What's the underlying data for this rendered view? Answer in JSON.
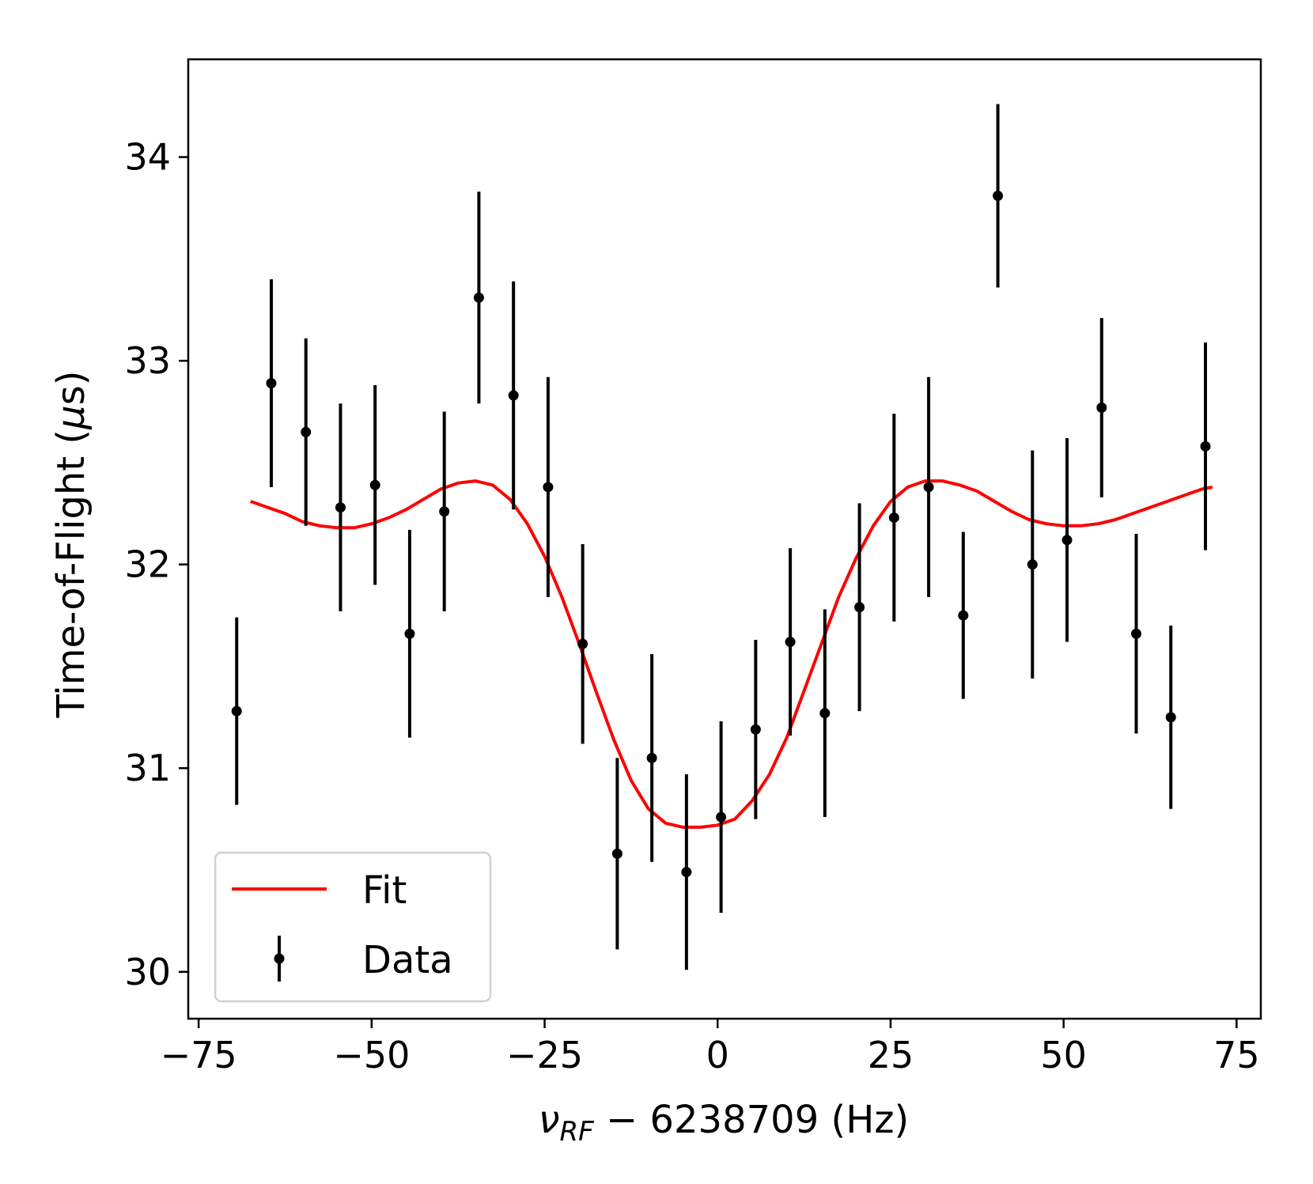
{
  "chart_data": {
    "type": "scatter",
    "xlabel_parts": {
      "nu": "ν",
      "sub": "RF",
      "rest": " − 6238709 (Hz)"
    },
    "ylabel": "Time-of-Flight (μs)",
    "ylabel_parts": {
      "prefix": "Time-of-Flight (",
      "mu": "μ",
      "suffix": "s)"
    },
    "xlim": [
      -76.5,
      78.5
    ],
    "ylim": [
      29.77,
      34.48
    ],
    "xticks": [
      -75,
      -50,
      -25,
      0,
      25,
      50,
      75
    ],
    "xtick_labels": [
      "−75",
      "−50",
      "−25",
      "0",
      "25",
      "50",
      "75"
    ],
    "yticks": [
      30,
      31,
      32,
      33,
      34
    ],
    "ytick_labels": [
      "30",
      "31",
      "32",
      "33",
      "34"
    ],
    "grid": false,
    "legend_position": "lower-left",
    "legend": [
      {
        "label": "Fit",
        "kind": "line",
        "color": "#ff0000"
      },
      {
        "label": "Data",
        "kind": "errorbar",
        "color": "#000000"
      }
    ],
    "series": [
      {
        "name": "Data",
        "kind": "errorbar",
        "color": "#000000",
        "points": [
          {
            "x": -69.5,
            "y": 31.28,
            "err": 0.46
          },
          {
            "x": -64.5,
            "y": 32.89,
            "err": 0.51
          },
          {
            "x": -59.5,
            "y": 32.65,
            "err": 0.46
          },
          {
            "x": -54.5,
            "y": 32.28,
            "err": 0.51
          },
          {
            "x": -49.5,
            "y": 32.39,
            "err": 0.49
          },
          {
            "x": -44.5,
            "y": 31.66,
            "err": 0.51
          },
          {
            "x": -39.5,
            "y": 32.26,
            "err": 0.49
          },
          {
            "x": -34.5,
            "y": 33.31,
            "err": 0.52
          },
          {
            "x": -29.5,
            "y": 32.83,
            "err": 0.56
          },
          {
            "x": -24.5,
            "y": 32.38,
            "err": 0.54
          },
          {
            "x": -19.5,
            "y": 31.61,
            "err": 0.49
          },
          {
            "x": -14.5,
            "y": 30.58,
            "err": 0.47
          },
          {
            "x": -9.5,
            "y": 31.05,
            "err": 0.51
          },
          {
            "x": -4.5,
            "y": 30.49,
            "err": 0.48
          },
          {
            "x": 0.5,
            "y": 30.76,
            "err": 0.47
          },
          {
            "x": 5.5,
            "y": 31.19,
            "err": 0.44
          },
          {
            "x": 10.5,
            "y": 31.62,
            "err": 0.46
          },
          {
            "x": 15.5,
            "y": 31.27,
            "err": 0.51
          },
          {
            "x": 20.5,
            "y": 31.79,
            "err": 0.51
          },
          {
            "x": 25.5,
            "y": 32.23,
            "err": 0.51
          },
          {
            "x": 30.5,
            "y": 32.38,
            "err": 0.54
          },
          {
            "x": 35.5,
            "y": 31.75,
            "err": 0.41
          },
          {
            "x": 40.5,
            "y": 33.81,
            "err": 0.45
          },
          {
            "x": 45.5,
            "y": 32.0,
            "err": 0.56
          },
          {
            "x": 50.5,
            "y": 32.12,
            "err": 0.5
          },
          {
            "x": 55.5,
            "y": 32.77,
            "err": 0.44
          },
          {
            "x": 60.5,
            "y": 31.66,
            "err": 0.49
          },
          {
            "x": 65.5,
            "y": 31.25,
            "err": 0.45
          },
          {
            "x": 70.5,
            "y": 32.58,
            "err": 0.51
          }
        ]
      },
      {
        "name": "Fit",
        "kind": "line",
        "color": "#ff0000",
        "x": [
          -67.5,
          -65,
          -62.5,
          -60,
          -57.5,
          -55,
          -52.5,
          -50,
          -47.5,
          -45,
          -42.5,
          -40,
          -37.5,
          -35,
          -32.5,
          -30,
          -27.5,
          -25,
          -22.5,
          -20,
          -17.5,
          -15,
          -12.5,
          -10,
          -7.5,
          -5,
          -2.5,
          0,
          2.5,
          5,
          7.5,
          10,
          12.5,
          15,
          17.5,
          20,
          22.5,
          25,
          27.5,
          30,
          32.5,
          35,
          37.5,
          40,
          42.5,
          45,
          47.5,
          50,
          52.5,
          55,
          57.5,
          60,
          62.5,
          65,
          67.5,
          70,
          71.5
        ],
        "y": [
          32.31,
          32.28,
          32.25,
          32.21,
          32.19,
          32.18,
          32.18,
          32.2,
          32.23,
          32.27,
          32.32,
          32.37,
          32.4,
          32.41,
          32.39,
          32.32,
          32.2,
          32.04,
          31.84,
          31.61,
          31.37,
          31.14,
          30.94,
          30.8,
          30.73,
          30.71,
          30.71,
          30.72,
          30.75,
          30.84,
          30.97,
          31.15,
          31.38,
          31.61,
          31.84,
          32.03,
          32.19,
          32.31,
          32.38,
          32.41,
          32.41,
          32.39,
          32.36,
          32.31,
          32.26,
          32.22,
          32.2,
          32.19,
          32.19,
          32.2,
          32.22,
          32.25,
          32.28,
          32.31,
          32.34,
          32.37,
          32.38
        ]
      }
    ]
  }
}
